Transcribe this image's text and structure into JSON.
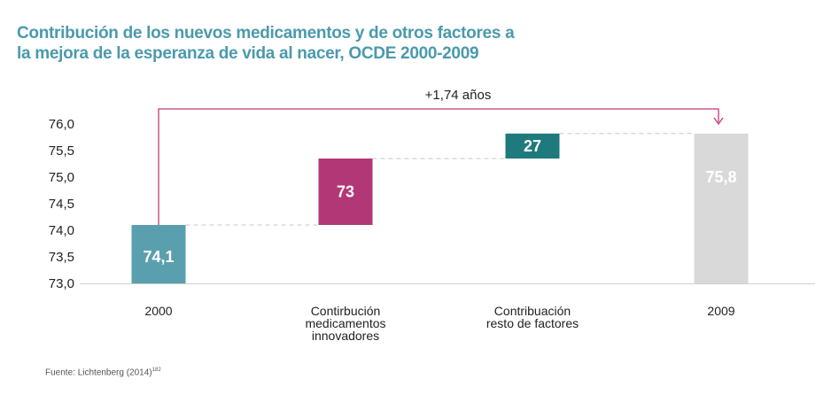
{
  "title_lines": [
    "Contribución de los nuevos medicamentos y de otros factores a",
    "la mejora de la esperanza de vida al nacer, OCDE 2000-2009"
  ],
  "source": "Fuente: Lichtenberg (2014)",
  "source_ref": "182",
  "chart_data": {
    "type": "waterfall",
    "ylim": [
      73.0,
      76.0
    ],
    "yticks": [
      "73,0",
      "73,5",
      "74,0",
      "74,5",
      "75,0",
      "75,5",
      "76,0"
    ],
    "ytick_values": [
      73.0,
      73.5,
      74.0,
      74.5,
      75.0,
      75.5,
      76.0
    ],
    "annotation": "+1,74 años",
    "bars": [
      {
        "category": [
          "2000"
        ],
        "kind": "total",
        "start": 73.0,
        "end": 74.1,
        "label": "74,1",
        "color": "#5a9fae",
        "label_color": "#ffffff"
      },
      {
        "category": [
          "Contirbución",
          "medicamentos",
          "innovadores"
        ],
        "kind": "step",
        "start": 74.1,
        "end": 75.35,
        "label": "73",
        "color": "#b23777",
        "label_color": "#ffffff"
      },
      {
        "category": [
          "Contribuación",
          "resto de factores"
        ],
        "kind": "step",
        "start": 75.35,
        "end": 75.82,
        "label": "27",
        "color": "#1e7a7d",
        "label_color": "#ffffff"
      },
      {
        "category": [
          "2009"
        ],
        "kind": "total",
        "start": 73.0,
        "end": 75.82,
        "label": "75,8",
        "color": "#d9d9d9",
        "label_color": "#ffffff"
      }
    ],
    "arrow_color": "#c2397a",
    "connector_color": "#c8c8c8"
  }
}
